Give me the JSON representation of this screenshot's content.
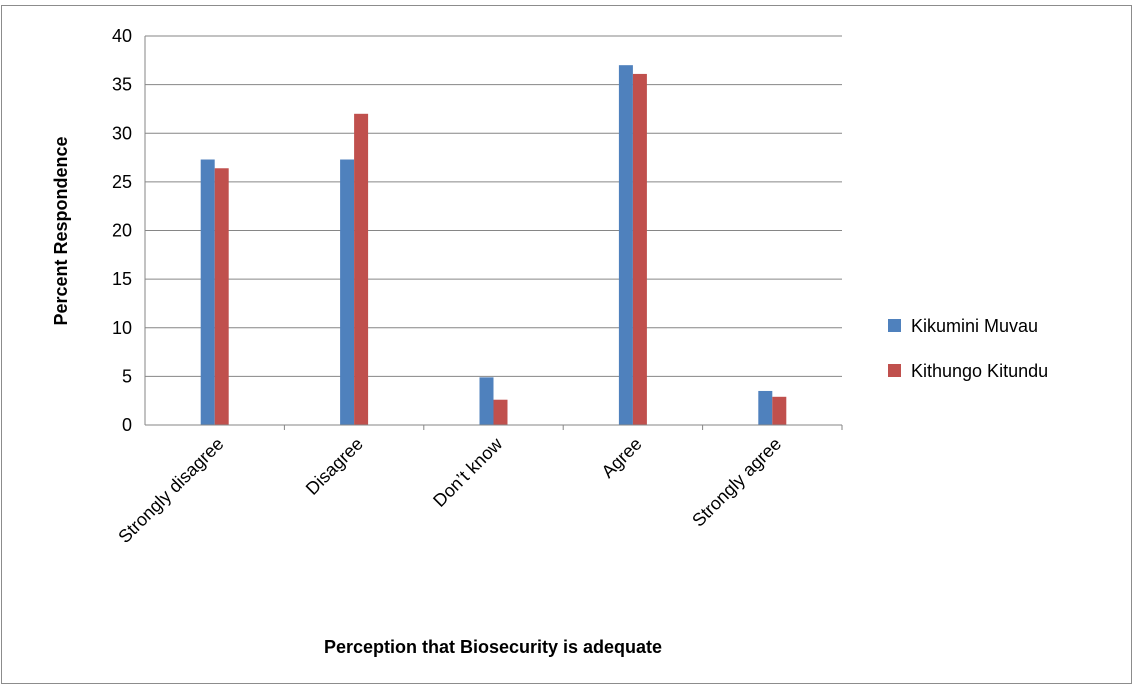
{
  "chart_data": {
    "type": "bar",
    "categories": [
      "Strongly disagree",
      "Disagree",
      "Don’t know",
      "Agree",
      "Strongly agree"
    ],
    "series": [
      {
        "name": "Kikumini Muvau",
        "color": "#4f81bd",
        "values": [
          27.3,
          27.3,
          4.9,
          37.0,
          3.5
        ]
      },
      {
        "name": "Kithungo Kitundu",
        "color": "#c0504d",
        "values": [
          26.4,
          32.0,
          2.6,
          36.1,
          2.9
        ]
      }
    ],
    "title": "",
    "xlabel": "Perception that Biosecurity is adequate",
    "ylabel": "Percent Respondence",
    "ylim": [
      0,
      40
    ],
    "yticks": [
      "0",
      "5",
      "10",
      "15",
      "20",
      "25",
      "30",
      "35",
      "40"
    ],
    "grid": true,
    "legend_position": "right"
  }
}
